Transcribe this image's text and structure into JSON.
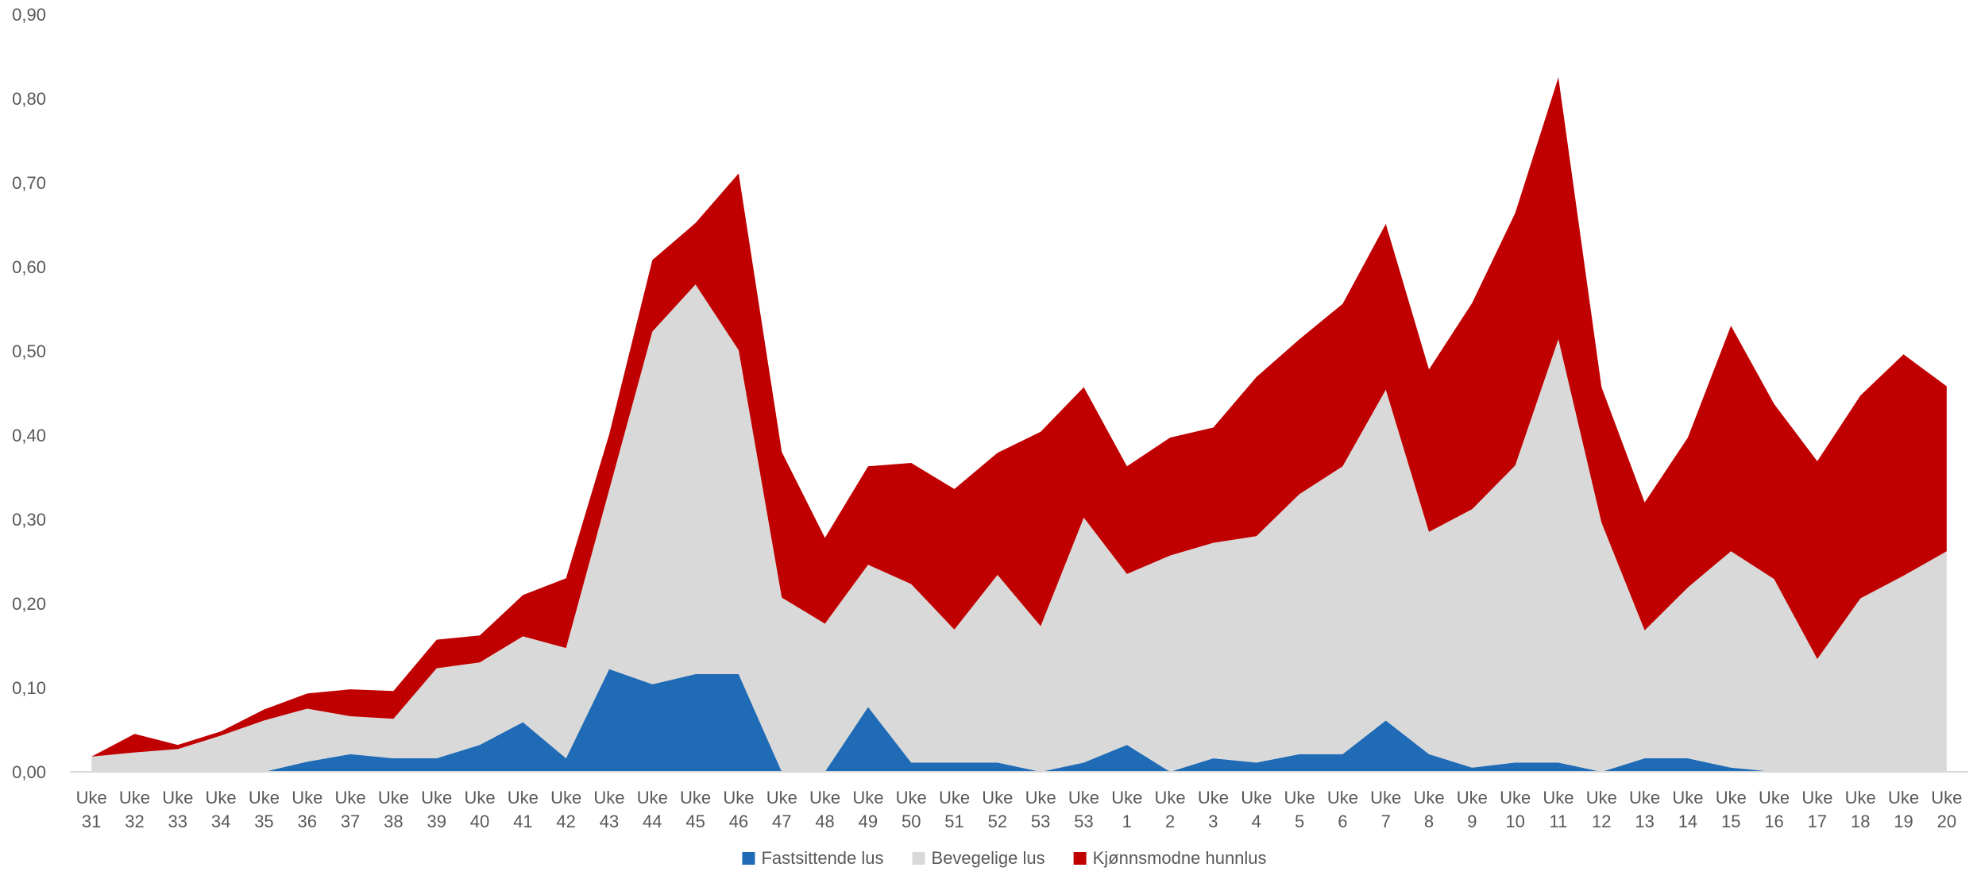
{
  "chart_data": {
    "type": "area",
    "stacked": true,
    "title": "",
    "xlabel": "",
    "ylabel": "",
    "ylim": [
      0,
      0.9
    ],
    "y_ticks": [
      "0,00",
      "0,10",
      "0,20",
      "0,30",
      "0,40",
      "0,50",
      "0,60",
      "0,70",
      "0,80",
      "0,90"
    ],
    "grid": false,
    "legend_position": "bottom",
    "categories": [
      [
        "Uke",
        "31"
      ],
      [
        "Uke",
        "32"
      ],
      [
        "Uke",
        "33"
      ],
      [
        "Uke",
        "34"
      ],
      [
        "Uke",
        "35"
      ],
      [
        "Uke",
        "36"
      ],
      [
        "Uke",
        "37"
      ],
      [
        "Uke",
        "38"
      ],
      [
        "Uke",
        "39"
      ],
      [
        "Uke",
        "40"
      ],
      [
        "Uke",
        "41"
      ],
      [
        "Uke",
        "42"
      ],
      [
        "Uke",
        "43"
      ],
      [
        "Uke",
        "44"
      ],
      [
        "Uke",
        "45"
      ],
      [
        "Uke",
        "46"
      ],
      [
        "Uke",
        "47"
      ],
      [
        "Uke",
        "48"
      ],
      [
        "Uke",
        "49"
      ],
      [
        "Uke",
        "50"
      ],
      [
        "Uke",
        "51"
      ],
      [
        "Uke",
        "52"
      ],
      [
        "Uke",
        "53"
      ],
      [
        "Uke",
        "53"
      ],
      [
        "Uke",
        "1"
      ],
      [
        "Uke",
        "2"
      ],
      [
        "Uke",
        "3"
      ],
      [
        "Uke",
        "4"
      ],
      [
        "Uke",
        "5"
      ],
      [
        "Uke",
        "6"
      ],
      [
        "Uke",
        "7"
      ],
      [
        "Uke",
        "8"
      ],
      [
        "Uke",
        "9"
      ],
      [
        "Uke",
        "10"
      ],
      [
        "Uke",
        "11"
      ],
      [
        "Uke",
        "12"
      ],
      [
        "Uke",
        "13"
      ],
      [
        "Uke",
        "14"
      ],
      [
        "Uke",
        "15"
      ],
      [
        "Uke",
        "16"
      ],
      [
        "Uke",
        "17"
      ],
      [
        "Uke",
        "18"
      ],
      [
        "Uke",
        "19"
      ],
      [
        "Uke",
        "20"
      ]
    ],
    "series": [
      {
        "name": "Fastsittende lus",
        "color": "#1F6BB5",
        "values": [
          0,
          0,
          0,
          0,
          0,
          0.012,
          0.021,
          0.016,
          0.016,
          0.032,
          0.059,
          0.016,
          0.122,
          0.104,
          0.116,
          0.116,
          0,
          0,
          0.077,
          0.011,
          0.011,
          0.011,
          0,
          0.011,
          0.032,
          0,
          0.016,
          0.011,
          0.021,
          0.021,
          0.061,
          0.021,
          0.005,
          0.011,
          0.011,
          0,
          0.016,
          0.016,
          0.005,
          0,
          0,
          0,
          0,
          0
        ]
      },
      {
        "name": "Bevegelige lus",
        "color": "#D9D9D9",
        "values": [
          0.018,
          0.023,
          0.027,
          0.043,
          0.061,
          0.063,
          0.045,
          0.047,
          0.107,
          0.098,
          0.102,
          0.131,
          0.213,
          0.419,
          0.463,
          0.385,
          0.207,
          0.176,
          0.169,
          0.212,
          0.158,
          0.223,
          0.173,
          0.291,
          0.203,
          0.257,
          0.256,
          0.269,
          0.309,
          0.342,
          0.393,
          0.264,
          0.307,
          0.353,
          0.503,
          0.296,
          0.152,
          0.203,
          0.257,
          0.229,
          0.134,
          0.206,
          0.233,
          0.262
        ]
      },
      {
        "name": "Kjønnsmodne hunnlus",
        "color": "#C00000",
        "values": [
          0,
          0.022,
          0.005,
          0.005,
          0.013,
          0.018,
          0.032,
          0.033,
          0.034,
          0.032,
          0.049,
          0.083,
          0.066,
          0.085,
          0.073,
          0.21,
          0.173,
          0.102,
          0.117,
          0.144,
          0.167,
          0.145,
          0.231,
          0.155,
          0.128,
          0.14,
          0.137,
          0.189,
          0.184,
          0.193,
          0.197,
          0.193,
          0.245,
          0.3,
          0.311,
          0.161,
          0.152,
          0.178,
          0.268,
          0.208,
          0.235,
          0.241,
          0.263,
          0.196
        ]
      }
    ]
  }
}
